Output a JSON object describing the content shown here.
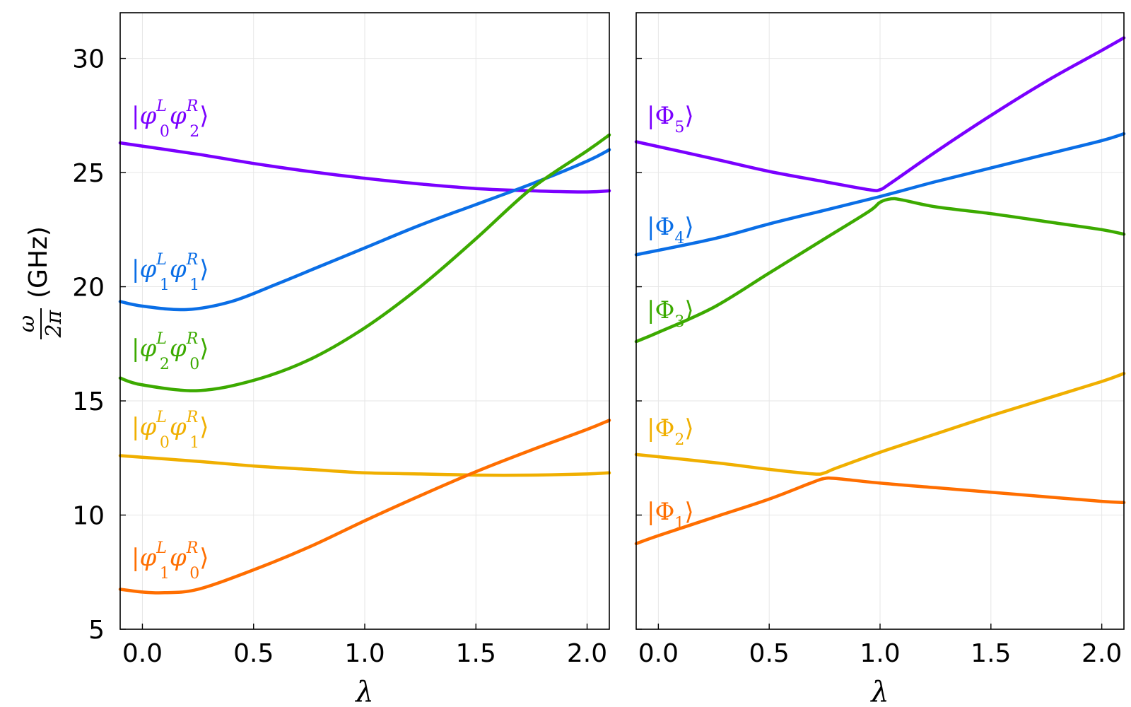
{
  "chart_data": [
    {
      "type": "line",
      "panel": "left",
      "xlabel": "λ",
      "ylabel": {
        "frac_num": "ω",
        "frac_den": "2π",
        "unit": "(GHz)"
      },
      "xlim": [
        -0.1,
        2.1
      ],
      "ylim": [
        5,
        32
      ],
      "xticks": [
        "0.0",
        "0.5",
        "1.0",
        "1.5",
        "2.0"
      ],
      "yticks": [
        "5",
        "10",
        "15",
        "20",
        "25",
        "30"
      ],
      "grid": true,
      "series": [
        {
          "name": "|φ0L φ2R⟩",
          "label": {
            "base": "φ",
            "sub1": "0",
            "sup1": "L",
            "sub2": "2",
            "sup2": "R"
          },
          "color": "#7a00ff",
          "x": [
            -0.1,
            0.25,
            0.5,
            0.75,
            1.0,
            1.25,
            1.5,
            1.75,
            2.0,
            2.1
          ],
          "y": [
            26.3,
            25.8,
            25.4,
            25.05,
            24.75,
            24.5,
            24.3,
            24.2,
            24.15,
            24.2
          ]
        },
        {
          "name": "|φ1L φ1R⟩",
          "label": {
            "base": "φ",
            "sub1": "1",
            "sup1": "L",
            "sub2": "1",
            "sup2": "R"
          },
          "color": "#0a6ee6",
          "x": [
            -0.1,
            0.0,
            0.2,
            0.4,
            0.6,
            0.8,
            1.0,
            1.25,
            1.5,
            1.75,
            2.0,
            2.1
          ],
          "y": [
            19.35,
            19.15,
            19.0,
            19.35,
            20.1,
            20.9,
            21.7,
            22.7,
            23.6,
            24.5,
            25.5,
            26.0
          ]
        },
        {
          "name": "|φ2L φ0R⟩",
          "label": {
            "base": "φ",
            "sub1": "2",
            "sup1": "L",
            "sub2": "0",
            "sup2": "R"
          },
          "color": "#3caa00",
          "x": [
            -0.1,
            0.0,
            0.25,
            0.5,
            0.75,
            1.0,
            1.25,
            1.5,
            1.75,
            2.0,
            2.1
          ],
          "y": [
            16.0,
            15.7,
            15.45,
            15.9,
            16.8,
            18.2,
            20.0,
            22.1,
            24.3,
            25.95,
            26.65
          ]
        },
        {
          "name": "|φ0L φ1R⟩",
          "label": {
            "base": "φ",
            "sub1": "0",
            "sup1": "L",
            "sub2": "1",
            "sup2": "R"
          },
          "color": "#f0af00",
          "x": [
            -0.1,
            0.25,
            0.5,
            0.75,
            1.0,
            1.25,
            1.5,
            1.75,
            2.0,
            2.1
          ],
          "y": [
            12.6,
            12.35,
            12.15,
            12.0,
            11.85,
            11.8,
            11.75,
            11.75,
            11.8,
            11.85
          ]
        },
        {
          "name": "|φ1L φ0R⟩",
          "label": {
            "base": "φ",
            "sub1": "1",
            "sup1": "L",
            "sub2": "0",
            "sup2": "R"
          },
          "color": "#ff6e00",
          "x": [
            -0.1,
            0.0,
            0.1,
            0.25,
            0.5,
            0.75,
            1.0,
            1.25,
            1.5,
            1.75,
            2.0,
            2.1
          ],
          "y": [
            6.75,
            6.63,
            6.6,
            6.75,
            7.6,
            8.6,
            9.75,
            10.85,
            11.9,
            12.85,
            13.75,
            14.15
          ]
        }
      ]
    },
    {
      "type": "line",
      "panel": "right",
      "xlabel": "λ",
      "xlim": [
        -0.1,
        2.1
      ],
      "ylim": [
        5,
        32
      ],
      "xticks": [
        "0.0",
        "0.5",
        "1.0",
        "1.5",
        "2.0"
      ],
      "grid": true,
      "series": [
        {
          "name": "|Φ5⟩",
          "label": {
            "base": "Φ",
            "sub1": "5"
          },
          "color": "#7a00ff",
          "x": [
            -0.1,
            0.25,
            0.5,
            0.75,
            0.95,
            1.0,
            1.05,
            1.25,
            1.5,
            1.75,
            2.0,
            2.1
          ],
          "y": [
            26.35,
            25.6,
            25.05,
            24.6,
            24.25,
            24.25,
            24.55,
            25.9,
            27.5,
            29.0,
            30.35,
            30.9
          ]
        },
        {
          "name": "|Φ4⟩",
          "label": {
            "base": "Φ",
            "sub1": "4"
          },
          "color": "#0a6ee6",
          "x": [
            -0.1,
            0.25,
            0.5,
            0.75,
            1.0,
            1.25,
            1.5,
            1.75,
            2.0,
            2.1
          ],
          "y": [
            21.4,
            22.1,
            22.75,
            23.35,
            23.95,
            24.6,
            25.2,
            25.8,
            26.4,
            26.7
          ]
        },
        {
          "name": "|Φ3⟩",
          "label": {
            "base": "Φ",
            "sub1": "3"
          },
          "color": "#3caa00",
          "x": [
            -0.1,
            0.0,
            0.25,
            0.5,
            0.75,
            0.95,
            1.0,
            1.05,
            1.1,
            1.25,
            1.5,
            1.75,
            2.0,
            2.1
          ],
          "y": [
            17.6,
            18.0,
            19.1,
            20.6,
            22.1,
            23.3,
            23.7,
            23.85,
            23.8,
            23.5,
            23.2,
            22.85,
            22.5,
            22.3
          ]
        },
        {
          "name": "|Φ2⟩",
          "label": {
            "base": "Φ",
            "sub1": "2"
          },
          "color": "#f0af00",
          "x": [
            -0.1,
            0.25,
            0.5,
            0.7,
            0.75,
            0.8,
            1.0,
            1.25,
            1.5,
            1.75,
            2.0,
            2.1
          ],
          "y": [
            12.65,
            12.3,
            12.0,
            11.8,
            11.85,
            12.05,
            12.75,
            13.55,
            14.35,
            15.1,
            15.85,
            16.2
          ]
        },
        {
          "name": "|Φ1⟩",
          "label": {
            "base": "Φ",
            "sub1": "1"
          },
          "color": "#ff6e00",
          "x": [
            -0.1,
            0.0,
            0.25,
            0.5,
            0.7,
            0.75,
            0.8,
            1.0,
            1.25,
            1.5,
            1.75,
            2.0,
            2.1
          ],
          "y": [
            8.75,
            9.1,
            9.9,
            10.7,
            11.45,
            11.6,
            11.6,
            11.4,
            11.2,
            11.0,
            10.8,
            10.6,
            10.55
          ]
        }
      ]
    }
  ]
}
